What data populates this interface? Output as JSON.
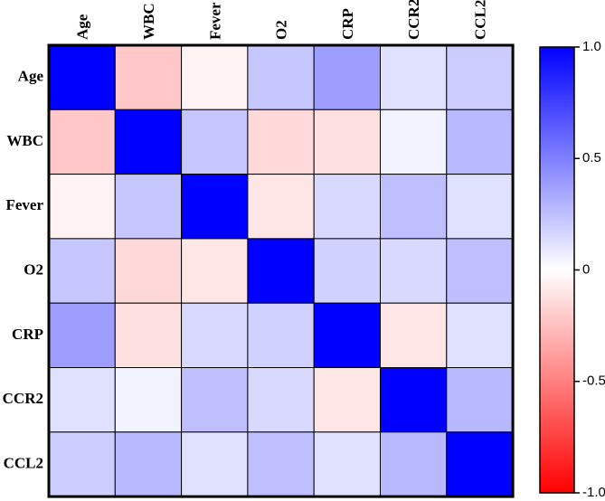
{
  "chart_data": {
    "type": "heatmap",
    "variables": [
      "Age",
      "WBC",
      "Fever",
      "O2",
      "CRP",
      "CCR2",
      "CCL2"
    ],
    "matrix": [
      [
        1.0,
        -0.22,
        -0.05,
        0.22,
        0.38,
        0.12,
        0.2
      ],
      [
        -0.22,
        1.0,
        0.22,
        -0.15,
        -0.12,
        0.05,
        0.28
      ],
      [
        -0.05,
        0.22,
        1.0,
        -0.1,
        0.15,
        0.25,
        0.12
      ],
      [
        0.22,
        -0.15,
        -0.1,
        1.0,
        0.18,
        0.15,
        0.25
      ],
      [
        0.38,
        -0.12,
        0.15,
        0.18,
        1.0,
        -0.1,
        0.12
      ],
      [
        0.12,
        0.05,
        0.25,
        0.15,
        -0.1,
        1.0,
        0.28
      ],
      [
        0.2,
        0.28,
        0.12,
        0.25,
        0.12,
        0.28,
        1.0
      ]
    ],
    "colorbar": {
      "range": [
        -1.0,
        1.0
      ],
      "ticks": [
        1.0,
        0.5,
        0,
        -0.5,
        -1.0
      ],
      "tick_labels": [
        "1.0",
        "0.5",
        "0",
        "-0.5",
        "-1.0"
      ],
      "colors": {
        "negative": "#ff0000",
        "zero": "#ffffff",
        "positive": "#0000ff"
      }
    },
    "title": "",
    "xlabel": "",
    "ylabel": ""
  }
}
